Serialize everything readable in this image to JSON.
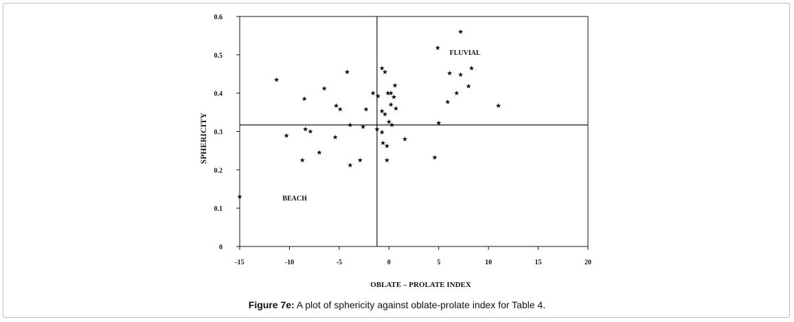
{
  "caption": {
    "label": "Figure 7e:",
    "text": "A plot of sphericity against oblate-prolate index for Table 4."
  },
  "chart_data": {
    "type": "scatter",
    "title": "",
    "xlabel": "OBLATE – PROLATE INDEX",
    "ylabel": "SPHERICITY",
    "xlim": [
      -15,
      20
    ],
    "ylim": [
      0,
      0.6
    ],
    "x_ticks": [
      "-15",
      "-10",
      "-5",
      "0",
      "5",
      "10",
      "15",
      "20"
    ],
    "y_ticks": [
      "0",
      "0.1",
      "0.2",
      "0.3",
      "0.4",
      "0.5",
      "0.6"
    ],
    "grid": false,
    "marker": "star",
    "reference_lines": {
      "x": -1.2,
      "y": 0.317
    },
    "annotations": [
      {
        "text": "FLUVIAL",
        "x": 6.1,
        "y": 0.5
      },
      {
        "text": "BEACH",
        "x": -10.7,
        "y": 0.12
      }
    ],
    "points": [
      {
        "x": -11.3,
        "y": 0.435
      },
      {
        "x": -8.5,
        "y": 0.385
      },
      {
        "x": -6.5,
        "y": 0.412
      },
      {
        "x": -4.2,
        "y": 0.455
      },
      {
        "x": -5.3,
        "y": 0.367
      },
      {
        "x": -4.9,
        "y": 0.358
      },
      {
        "x": -2.3,
        "y": 0.358
      },
      {
        "x": -1.6,
        "y": 0.4
      },
      {
        "x": -1.1,
        "y": 0.392
      },
      {
        "x": -0.7,
        "y": 0.465
      },
      {
        "x": -0.4,
        "y": 0.455
      },
      {
        "x": -0.1,
        "y": 0.4
      },
      {
        "x": 0.2,
        "y": 0.4
      },
      {
        "x": 0.6,
        "y": 0.42
      },
      {
        "x": 0.5,
        "y": 0.39
      },
      {
        "x": 0.2,
        "y": 0.37
      },
      {
        "x": 0.7,
        "y": 0.36
      },
      {
        "x": -0.7,
        "y": 0.353
      },
      {
        "x": -0.4,
        "y": 0.345
      },
      {
        "x": 0.0,
        "y": 0.325
      },
      {
        "x": 0.3,
        "y": 0.317
      },
      {
        "x": -3.9,
        "y": 0.317
      },
      {
        "x": -2.6,
        "y": 0.312
      },
      {
        "x": -1.2,
        "y": 0.306
      },
      {
        "x": -0.7,
        "y": 0.298
      },
      {
        "x": -10.3,
        "y": 0.289
      },
      {
        "x": -8.4,
        "y": 0.306
      },
      {
        "x": -7.9,
        "y": 0.3
      },
      {
        "x": -5.4,
        "y": 0.285
      },
      {
        "x": -0.6,
        "y": 0.27
      },
      {
        "x": -0.2,
        "y": 0.262
      },
      {
        "x": 1.6,
        "y": 0.28
      },
      {
        "x": -7.0,
        "y": 0.245
      },
      {
        "x": -8.7,
        "y": 0.225
      },
      {
        "x": -2.9,
        "y": 0.225
      },
      {
        "x": -3.9,
        "y": 0.212
      },
      {
        "x": -0.2,
        "y": 0.225
      },
      {
        "x": 4.6,
        "y": 0.232
      },
      {
        "x": 5.0,
        "y": 0.322
      },
      {
        "x": 4.9,
        "y": 0.518
      },
      {
        "x": 7.2,
        "y": 0.56
      },
      {
        "x": 6.1,
        "y": 0.452
      },
      {
        "x": 7.2,
        "y": 0.448
      },
      {
        "x": 8.3,
        "y": 0.465
      },
      {
        "x": 6.8,
        "y": 0.4
      },
      {
        "x": 8.0,
        "y": 0.418
      },
      {
        "x": 5.9,
        "y": 0.377
      },
      {
        "x": 11.0,
        "y": 0.367
      },
      {
        "x": -15.0,
        "y": 0.13
      }
    ]
  }
}
